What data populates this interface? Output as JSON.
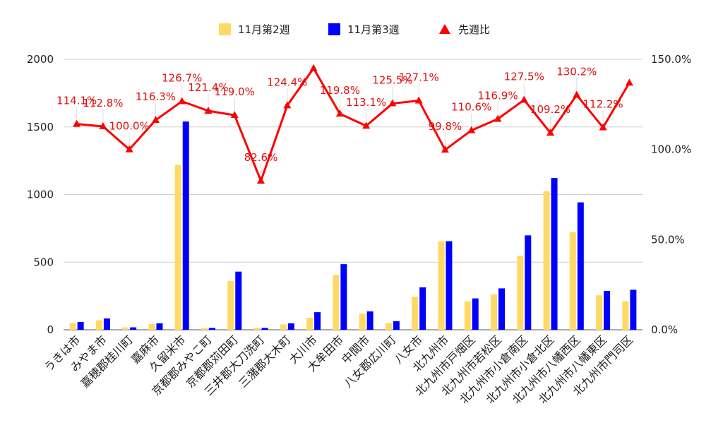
{
  "chart_data": {
    "type": "bar",
    "categories": [
      "うきは市",
      "みやま市",
      "嘉穂郡桂川町",
      "嘉麻市",
      "久留米市",
      "京都郡みやこ町",
      "京都郡苅田町",
      "三井郡大刀洗町",
      "三潴郡大木町",
      "大川市",
      "大牟田市",
      "中間市",
      "八女郡広川町",
      "八女市",
      "北九州市",
      "北九州市戸畑区",
      "北九州市若松区",
      "北九州市小倉南区",
      "北九州市小倉北区",
      "北九州市八幡西区",
      "北九州市八幡東区",
      "北九州市門司区"
    ],
    "series": [
      {
        "name": "11月第2週",
        "type": "bar",
        "axis": "left",
        "color": "#ffd966",
        "values": [
          50,
          70,
          18,
          42,
          1220,
          12,
          360,
          15,
          40,
          88,
          405,
          120,
          50,
          245,
          655,
          210,
          262,
          548,
          1025,
          722,
          255,
          210
        ]
      },
      {
        "name": "11月第3週",
        "type": "bar",
        "axis": "left",
        "color": "#0000ff",
        "values": [
          58,
          84,
          18,
          48,
          1540,
          14,
          430,
          14,
          48,
          130,
          485,
          136,
          64,
          314,
          655,
          232,
          306,
          698,
          1122,
          942,
          287,
          296
        ]
      },
      {
        "name": "先週比",
        "type": "line",
        "axis": "right",
        "color": "#ff0000",
        "values": [
          114.1,
          112.8,
          100.0,
          116.3,
          126.7,
          121.4,
          119.0,
          82.6,
          124.4,
          145.0,
          119.8,
          113.1,
          125.5,
          127.1,
          99.8,
          110.6,
          116.9,
          127.5,
          109.2,
          130.2,
          112.2,
          137.0
        ],
        "labels": [
          "114.1%",
          "112.8%",
          "100.0%",
          "116.3%",
          "126.7%",
          "121.4%",
          "119.0%",
          "82.6%",
          "124.4%",
          "",
          "119.8%",
          "113.1%",
          "125.5%",
          "127.1%",
          "99.8%",
          "110.6%",
          "116.9%",
          "127.5%",
          "109.2%",
          "130.2%",
          "112.2%",
          ""
        ]
      }
    ],
    "y_left": {
      "min": 0,
      "max": 2000,
      "ticks": [
        "0",
        "500",
        "1000",
        "1500",
        "2000"
      ]
    },
    "y_right": {
      "min": 0,
      "max": 150,
      "ticks": [
        "0.0%",
        "50.0%",
        "100.0%",
        "150.0%"
      ]
    },
    "grid": true,
    "legend_position": "top-center"
  }
}
